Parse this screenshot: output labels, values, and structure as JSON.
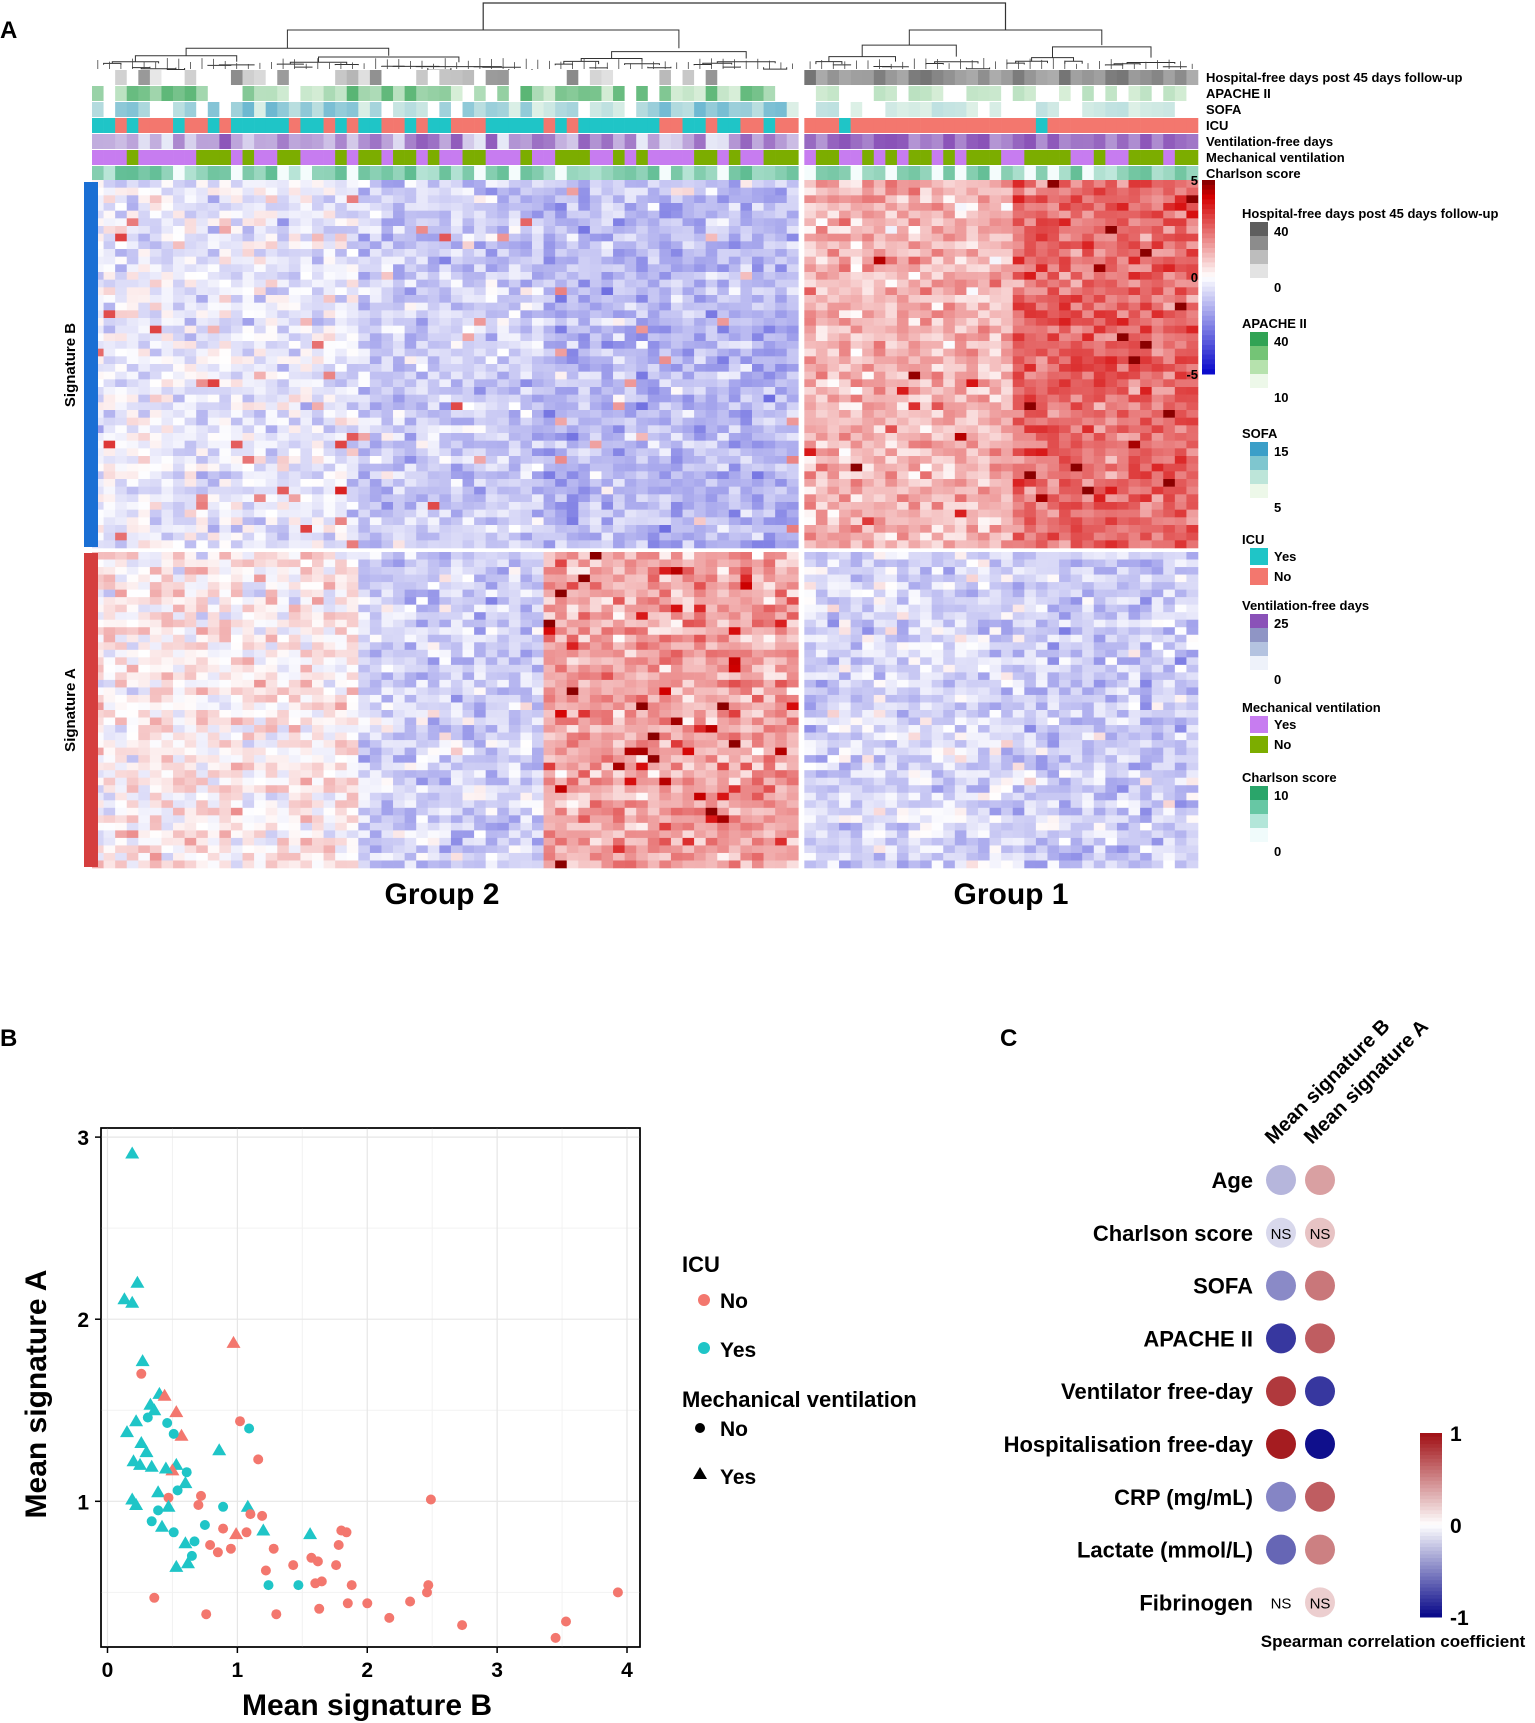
{
  "panel_labels": {
    "a": "A",
    "b": "B",
    "c": "C"
  },
  "colors": {
    "heat_low": "#0c0ccc",
    "heat_mid": "#ffffff",
    "heat_high": "#d40000",
    "heat_max": "#8b0000",
    "icu_yes": "#1fc5c7",
    "icu_no": "#f3776e",
    "mv_yes": "#c77cf0",
    "mv_no": "#7cad00",
    "signature_b_bar": "#1a6fd4",
    "signature_a_bar": "#d53e3e",
    "corr_pos": "#a11217",
    "corr_neg": "#0b0b8a"
  },
  "chart_data": [
    {
      "type": "heatmap",
      "panel": "A",
      "columns_count": 95,
      "group_split_column": 61,
      "group_labels": [
        "Group 2",
        "Group 1"
      ],
      "row_blocks": [
        {
          "name": "Signature B",
          "rows": 48
        },
        {
          "name": "Signature A",
          "rows": 42
        }
      ],
      "annotation_tracks": [
        "Hospital-free days post 45 days follow-up",
        "APACHE II",
        "SOFA",
        "ICU",
        "Ventilation-free days",
        "Mechanical ventilation",
        "Charlson score"
      ],
      "color_scale": {
        "ticks": [
          "5",
          "0",
          "-5"
        ],
        "range": [
          -5,
          5
        ]
      },
      "legends": [
        {
          "title": "Hospital-free days post 45 days follow-up",
          "entries": [
            "40",
            "0"
          ]
        },
        {
          "title": "APACHE II",
          "entries": [
            "40",
            "10"
          ]
        },
        {
          "title": "SOFA",
          "entries": [
            "15",
            "5"
          ]
        },
        {
          "title": "ICU",
          "entries": [
            "Yes",
            "No"
          ]
        },
        {
          "title": "Ventilation-free days",
          "entries": [
            "25",
            "0"
          ]
        },
        {
          "title": "Mechanical ventilation",
          "entries": [
            "Yes",
            "No"
          ]
        },
        {
          "title": "Charlson score",
          "entries": [
            "10",
            "0"
          ]
        }
      ]
    },
    {
      "type": "scatter",
      "panel": "B",
      "xlabel": "Mean signature B",
      "ylabel": "Mean signature A",
      "xlim": [
        -0.05,
        4.1
      ],
      "ylim": [
        0.2,
        3.05
      ],
      "xticks": [
        "0",
        "1",
        "2",
        "3",
        "4"
      ],
      "yticks": [
        "1",
        "2",
        "3"
      ],
      "legend": {
        "icu_title": "ICU",
        "icu_no": "No",
        "icu_yes": "Yes",
        "mv_title": "Mechanical ventilation",
        "mv_no": "No",
        "mv_yes": "Yes"
      },
      "points_fields": [
        "x",
        "y",
        "icu",
        "mechanical_ventilation"
      ],
      "points": [
        [
          0.19,
          2.91,
          "Yes",
          "Yes"
        ],
        [
          0.13,
          2.11,
          "Yes",
          "Yes"
        ],
        [
          0.19,
          2.09,
          "Yes",
          "Yes"
        ],
        [
          0.23,
          2.2,
          "Yes",
          "Yes"
        ],
        [
          0.27,
          1.77,
          "Yes",
          "Yes"
        ],
        [
          0.26,
          1.7,
          "No",
          "No"
        ],
        [
          0.97,
          1.87,
          "No",
          "Yes"
        ],
        [
          0.33,
          1.53,
          "Yes",
          "Yes"
        ],
        [
          0.36,
          1.5,
          "Yes",
          "Yes"
        ],
        [
          0.4,
          1.59,
          "Yes",
          "Yes"
        ],
        [
          0.44,
          1.58,
          "No",
          "Yes"
        ],
        [
          0.53,
          1.49,
          "No",
          "Yes"
        ],
        [
          0.57,
          1.36,
          "No",
          "Yes"
        ],
        [
          0.15,
          1.38,
          "Yes",
          "Yes"
        ],
        [
          0.22,
          1.44,
          "Yes",
          "Yes"
        ],
        [
          0.31,
          1.46,
          "Yes",
          "No"
        ],
        [
          0.46,
          1.43,
          "Yes",
          "No"
        ],
        [
          0.51,
          1.37,
          "Yes",
          "No"
        ],
        [
          0.26,
          1.32,
          "Yes",
          "Yes"
        ],
        [
          0.3,
          1.27,
          "Yes",
          "Yes"
        ],
        [
          0.2,
          1.22,
          "Yes",
          "Yes"
        ],
        [
          0.25,
          1.2,
          "Yes",
          "Yes"
        ],
        [
          0.34,
          1.19,
          "Yes",
          "Yes"
        ],
        [
          0.53,
          1.2,
          "Yes",
          "Yes"
        ],
        [
          0.5,
          1.17,
          "No",
          "Yes"
        ],
        [
          0.45,
          1.18,
          "Yes",
          "Yes"
        ],
        [
          0.61,
          1.16,
          "Yes",
          "No"
        ],
        [
          0.86,
          1.28,
          "Yes",
          "Yes"
        ],
        [
          1.02,
          1.44,
          "No",
          "No"
        ],
        [
          1.09,
          1.4,
          "Yes",
          "No"
        ],
        [
          1.16,
          1.23,
          "No",
          "No"
        ],
        [
          0.39,
          1.05,
          "Yes",
          "Yes"
        ],
        [
          0.47,
          1.02,
          "No",
          "No"
        ],
        [
          0.54,
          1.06,
          "Yes",
          "No"
        ],
        [
          0.6,
          1.1,
          "Yes",
          "Yes"
        ],
        [
          0.19,
          1.01,
          "Yes",
          "Yes"
        ],
        [
          0.22,
          0.98,
          "Yes",
          "Yes"
        ],
        [
          0.39,
          0.95,
          "Yes",
          "No"
        ],
        [
          0.47,
          0.97,
          "Yes",
          "Yes"
        ],
        [
          0.72,
          1.03,
          "No",
          "No"
        ],
        [
          0.7,
          0.98,
          "No",
          "No"
        ],
        [
          0.89,
          0.97,
          "Yes",
          "No"
        ],
        [
          1.08,
          0.97,
          "Yes",
          "Yes"
        ],
        [
          1.1,
          0.93,
          "No",
          "No"
        ],
        [
          1.19,
          0.92,
          "No",
          "No"
        ],
        [
          1.2,
          0.84,
          "Yes",
          "Yes"
        ],
        [
          0.34,
          0.89,
          "Yes",
          "No"
        ],
        [
          0.42,
          0.86,
          "Yes",
          "Yes"
        ],
        [
          0.51,
          0.83,
          "Yes",
          "No"
        ],
        [
          0.75,
          0.87,
          "Yes",
          "No"
        ],
        [
          0.89,
          0.85,
          "No",
          "No"
        ],
        [
          0.99,
          0.82,
          "No",
          "Yes"
        ],
        [
          1.07,
          0.83,
          "No",
          "No"
        ],
        [
          0.6,
          0.77,
          "Yes",
          "Yes"
        ],
        [
          0.67,
          0.78,
          "Yes",
          "No"
        ],
        [
          0.79,
          0.76,
          "No",
          "No"
        ],
        [
          0.85,
          0.72,
          "No",
          "No"
        ],
        [
          0.95,
          0.74,
          "No",
          "No"
        ],
        [
          1.28,
          0.74,
          "No",
          "No"
        ],
        [
          0.53,
          0.64,
          "Yes",
          "Yes"
        ],
        [
          0.62,
          0.66,
          "Yes",
          "Yes"
        ],
        [
          0.65,
          0.7,
          "Yes",
          "No"
        ],
        [
          1.22,
          0.62,
          "No",
          "No"
        ],
        [
          1.43,
          0.65,
          "No",
          "No"
        ],
        [
          1.24,
          0.54,
          "Yes",
          "No"
        ],
        [
          1.47,
          0.54,
          "Yes",
          "No"
        ],
        [
          1.56,
          0.82,
          "Yes",
          "Yes"
        ],
        [
          1.57,
          0.69,
          "No",
          "No"
        ],
        [
          1.62,
          0.67,
          "No",
          "No"
        ],
        [
          1.6,
          0.55,
          "No",
          "No"
        ],
        [
          1.65,
          0.56,
          "No",
          "No"
        ],
        [
          1.76,
          0.65,
          "No",
          "No"
        ],
        [
          1.78,
          0.76,
          "No",
          "No"
        ],
        [
          1.8,
          0.84,
          "No",
          "No"
        ],
        [
          1.84,
          0.83,
          "No",
          "No"
        ],
        [
          1.88,
          0.54,
          "No",
          "No"
        ],
        [
          1.85,
          0.44,
          "No",
          "No"
        ],
        [
          1.63,
          0.41,
          "No",
          "No"
        ],
        [
          2.0,
          0.44,
          "No",
          "No"
        ],
        [
          2.17,
          0.36,
          "No",
          "No"
        ],
        [
          2.33,
          0.45,
          "No",
          "No"
        ],
        [
          2.47,
          0.54,
          "No",
          "No"
        ],
        [
          2.46,
          0.5,
          "No",
          "No"
        ],
        [
          2.49,
          1.01,
          "No",
          "No"
        ],
        [
          2.73,
          0.32,
          "No",
          "No"
        ],
        [
          3.45,
          0.25,
          "No",
          "No"
        ],
        [
          3.53,
          0.34,
          "No",
          "No"
        ],
        [
          3.93,
          0.5,
          "No",
          "No"
        ],
        [
          0.36,
          0.47,
          "No",
          "No"
        ],
        [
          0.76,
          0.38,
          "No",
          "No"
        ],
        [
          1.3,
          0.38,
          "No",
          "No"
        ]
      ]
    },
    {
      "type": "heatmap",
      "panel": "C",
      "columns": [
        "Mean signature B",
        "Mean signature A"
      ],
      "rows": [
        "Age",
        "Charlson score",
        "SOFA",
        "APACHE II",
        "Ventilator free-day",
        "Hospitalisation free-day",
        "CRP (mg/mL)",
        "Lactate (mmol/L)",
        "Fibrinogen"
      ],
      "values": [
        [
          -0.22,
          0.32
        ],
        [
          -0.1,
          0.18
        ],
        [
          -0.4,
          0.5
        ],
        [
          -0.78,
          0.62
        ],
        [
          0.8,
          -0.78
        ],
        [
          0.95,
          -0.98
        ],
        [
          -0.42,
          0.62
        ],
        [
          -0.56,
          0.46
        ],
        [
          0.0,
          0.14
        ]
      ],
      "ns_cells": [
        [
          1,
          0
        ],
        [
          1,
          1
        ],
        [
          8,
          0
        ],
        [
          8,
          1
        ]
      ],
      "ns_label": "NS",
      "colorbar": {
        "title": "Spearman correlation coefficient",
        "ticks": [
          "1",
          "0",
          "-1"
        ],
        "range": [
          -1,
          1
        ]
      }
    }
  ]
}
